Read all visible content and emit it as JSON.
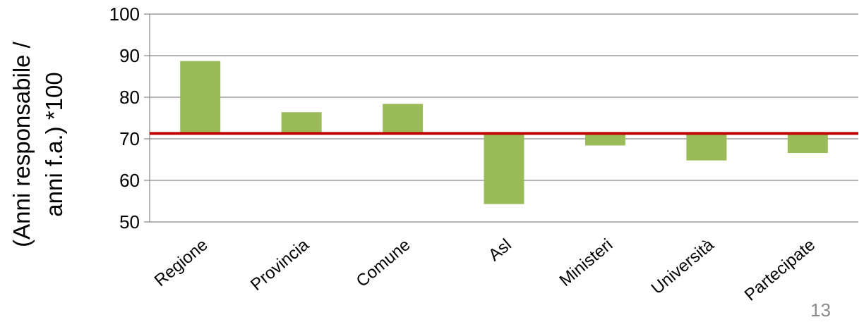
{
  "chart_data": {
    "type": "bar",
    "categories": [
      "Regione",
      "Provincia",
      "Comune",
      "Asl",
      "Ministeri",
      "Università",
      "Partecipate"
    ],
    "values": [
      88.7,
      76.4,
      78.4,
      54.3,
      68.4,
      64.8,
      66.6
    ],
    "baseline": 71.3,
    "ylabel_line1": "(Anni responsabile /",
    "ylabel_line2": "anni f.a.) *100",
    "ylim": [
      50,
      100
    ],
    "yticks": [
      50,
      60,
      70,
      80,
      90,
      100
    ],
    "grid": true,
    "colors": {
      "bar": "#9BBB59",
      "baseline": "#C00000",
      "grid": "#868686"
    }
  },
  "page_number": "13"
}
